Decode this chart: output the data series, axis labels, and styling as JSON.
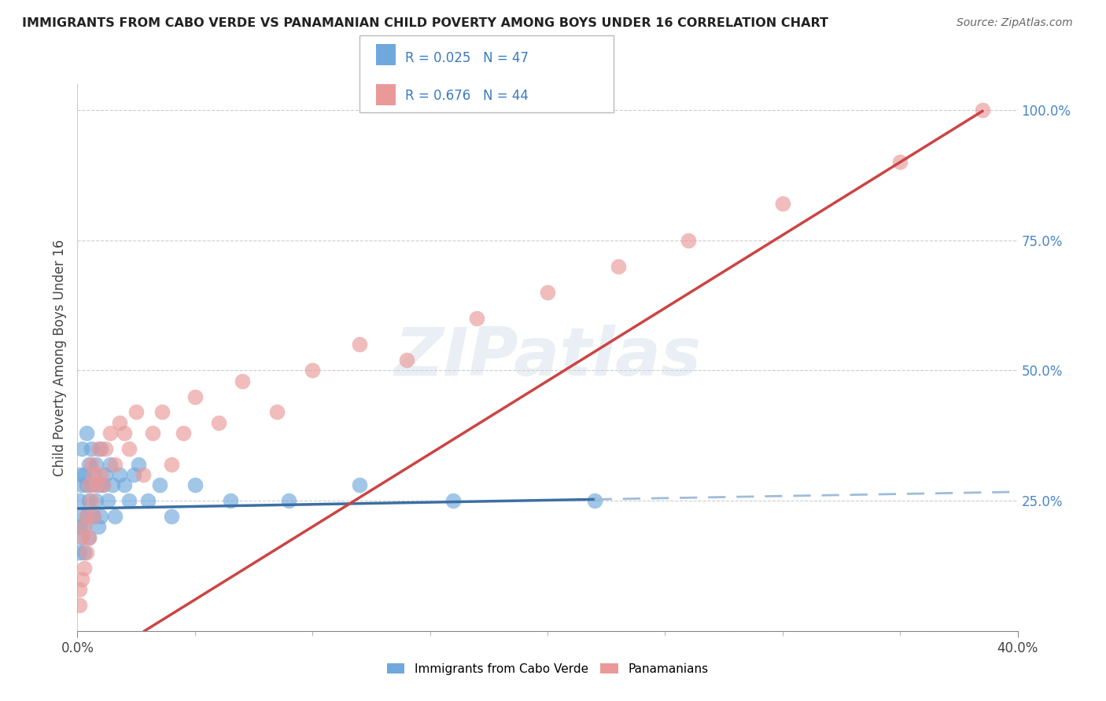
{
  "title": "IMMIGRANTS FROM CABO VERDE VS PANAMANIAN CHILD POVERTY AMONG BOYS UNDER 16 CORRELATION CHART",
  "source": "Source: ZipAtlas.com",
  "ylabel": "Child Poverty Among Boys Under 16",
  "xlim": [
    0.0,
    0.4
  ],
  "ylim": [
    0.0,
    1.05
  ],
  "ytick_positions": [
    0.0,
    0.25,
    0.5,
    0.75,
    1.0
  ],
  "ytick_labels": [
    "",
    "25.0%",
    "50.0%",
    "75.0%",
    "100.0%"
  ],
  "grid_color": "#cccccc",
  "background_color": "#ffffff",
  "blue_color": "#6fa8dc",
  "pink_color": "#ea9999",
  "blue_line_color": "#3d6fa3",
  "blue_dash_color": "#a0bcd8",
  "pink_line_color": "#cc4444",
  "blue_R": 0.025,
  "blue_N": 47,
  "pink_R": 0.676,
  "pink_N": 44,
  "legend_label_blue": "Immigrants from Cabo Verde",
  "legend_label_pink": "Panamanians",
  "watermark": "ZIPatlas",
  "blue_scatter_x": [
    0.001,
    0.001,
    0.001,
    0.001,
    0.002,
    0.002,
    0.002,
    0.002,
    0.003,
    0.003,
    0.003,
    0.004,
    0.004,
    0.004,
    0.005,
    0.005,
    0.005,
    0.006,
    0.006,
    0.007,
    0.007,
    0.008,
    0.008,
    0.009,
    0.009,
    0.01,
    0.01,
    0.011,
    0.012,
    0.013,
    0.014,
    0.015,
    0.016,
    0.018,
    0.02,
    0.022,
    0.024,
    0.026,
    0.03,
    0.035,
    0.04,
    0.05,
    0.065,
    0.09,
    0.12,
    0.16,
    0.22
  ],
  "blue_scatter_y": [
    0.2,
    0.15,
    0.25,
    0.3,
    0.18,
    0.22,
    0.28,
    0.35,
    0.15,
    0.2,
    0.3,
    0.22,
    0.28,
    0.38,
    0.25,
    0.32,
    0.18,
    0.28,
    0.35,
    0.22,
    0.3,
    0.25,
    0.32,
    0.2,
    0.28,
    0.22,
    0.35,
    0.28,
    0.3,
    0.25,
    0.32,
    0.28,
    0.22,
    0.3,
    0.28,
    0.25,
    0.3,
    0.32,
    0.25,
    0.28,
    0.22,
    0.28,
    0.25,
    0.25,
    0.28,
    0.25,
    0.25
  ],
  "pink_scatter_x": [
    0.001,
    0.001,
    0.002,
    0.002,
    0.003,
    0.003,
    0.004,
    0.004,
    0.005,
    0.005,
    0.006,
    0.006,
    0.007,
    0.007,
    0.008,
    0.009,
    0.01,
    0.011,
    0.012,
    0.014,
    0.016,
    0.018,
    0.02,
    0.022,
    0.025,
    0.028,
    0.032,
    0.036,
    0.04,
    0.045,
    0.05,
    0.06,
    0.07,
    0.085,
    0.1,
    0.12,
    0.14,
    0.17,
    0.2,
    0.23,
    0.26,
    0.3,
    0.35,
    0.385
  ],
  "pink_scatter_y": [
    0.05,
    0.08,
    0.1,
    0.18,
    0.12,
    0.2,
    0.15,
    0.22,
    0.18,
    0.28,
    0.25,
    0.32,
    0.22,
    0.3,
    0.28,
    0.35,
    0.3,
    0.28,
    0.35,
    0.38,
    0.32,
    0.4,
    0.38,
    0.35,
    0.42,
    0.3,
    0.38,
    0.42,
    0.32,
    0.38,
    0.45,
    0.4,
    0.48,
    0.42,
    0.5,
    0.55,
    0.52,
    0.6,
    0.65,
    0.7,
    0.75,
    0.82,
    0.9,
    1.0
  ]
}
